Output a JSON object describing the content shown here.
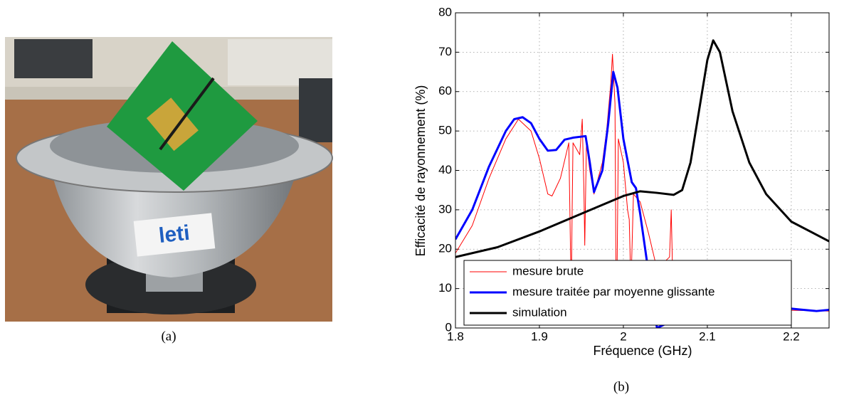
{
  "figure": {
    "photo_caption": "(a)",
    "photo_sign": "leti",
    "chart_caption": "(b)"
  },
  "chart_data": {
    "type": "line",
    "xlabel": "Fréquence (GHz)",
    "ylabel": "Efficacité de rayonnement (%)",
    "xlim": [
      1.8,
      2.245
    ],
    "ylim": [
      0,
      80
    ],
    "xticks": [
      1.8,
      1.9,
      2,
      2.1,
      2.2
    ],
    "yticks": [
      0,
      10,
      20,
      30,
      40,
      50,
      60,
      70,
      80
    ],
    "grid": true,
    "legend": "lower left",
    "series": [
      {
        "name": "mesure brute",
        "color": "#ff0000",
        "width": 1,
        "x": [
          1.8,
          1.82,
          1.84,
          1.86,
          1.875,
          1.89,
          1.9,
          1.91,
          1.915,
          1.925,
          1.935,
          1.937,
          1.938,
          1.939,
          1.94,
          1.948,
          1.951,
          1.953,
          1.954,
          1.956,
          1.96,
          1.965,
          1.975,
          1.98,
          1.985,
          1.987,
          1.99,
          1.991,
          1.992,
          1.994,
          2.0,
          2.005,
          2.007,
          2.009,
          2.012,
          2.02,
          2.03,
          2.04,
          2.055,
          2.057,
          2.059,
          2.08,
          2.1,
          2.15,
          2.2,
          2.245
        ],
        "values": [
          19,
          26,
          38,
          48,
          53,
          50,
          43,
          34,
          33.5,
          38,
          47,
          20,
          10,
          30,
          47,
          44,
          53,
          35,
          21,
          47,
          40,
          34,
          42,
          50,
          62,
          69.5,
          57,
          20,
          3,
          48,
          42,
          30,
          27.5,
          10,
          34,
          32,
          24,
          15,
          18,
          30,
          10,
          7,
          5,
          5,
          4.5,
          4.3
        ]
      },
      {
        "name": "mesure traitée par moyenne glissante",
        "color": "#0000ff",
        "width": 3,
        "x": [
          1.8,
          1.82,
          1.84,
          1.86,
          1.87,
          1.88,
          1.89,
          1.9,
          1.91,
          1.92,
          1.93,
          1.94,
          1.955,
          1.96,
          1.965,
          1.975,
          1.982,
          1.988,
          1.993,
          2.0,
          2.01,
          2.015,
          2.02,
          2.03,
          2.04,
          2.06,
          2.1,
          2.15,
          2.21,
          2.23,
          2.245
        ],
        "values": [
          22.5,
          30,
          41,
          50,
          53,
          53.5,
          52,
          48,
          45,
          45.2,
          47.8,
          48.3,
          48.7,
          42,
          34.5,
          40,
          52,
          65,
          61,
          48,
          37,
          35.5,
          29,
          14,
          0,
          2,
          4,
          6,
          4.7,
          4.3,
          4.6
        ]
      },
      {
        "name": "simulation",
        "color": "#000000",
        "width": 3,
        "x": [
          1.8,
          1.85,
          1.9,
          1.95,
          2.0,
          2.02,
          2.04,
          2.06,
          2.07,
          2.08,
          2.09,
          2.1,
          2.107,
          2.115,
          2.13,
          2.15,
          2.17,
          2.2,
          2.245
        ],
        "values": [
          18,
          20.5,
          24.5,
          29,
          33.5,
          34.7,
          34.3,
          33.8,
          35,
          42,
          55,
          68,
          73,
          70,
          55,
          42,
          34,
          27,
          22
        ]
      }
    ]
  }
}
